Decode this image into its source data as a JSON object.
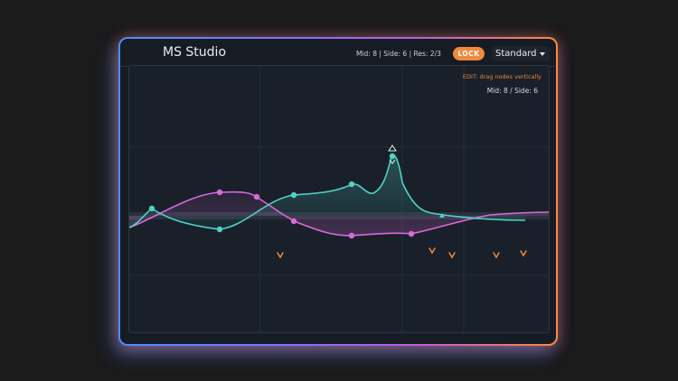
{
  "app": {
    "title": "MS Studio"
  },
  "header": {
    "status": "Mid: 8 | Side: 6 | Res: 2/3",
    "lock_label": "LOCK",
    "preset_label": "Standard"
  },
  "plot": {
    "edit_hint": "EDIT: drag nodes vertically",
    "counts": "Mid: 8 / Side: 6"
  },
  "colors": {
    "mid_curve": "#4fd3c4",
    "side_curve": "#d86ad8",
    "marker": "#f08a3c",
    "accent": "#f08a3c"
  },
  "icons": {
    "selected_node": "up-down-arrows",
    "markers": "chevron-down"
  }
}
